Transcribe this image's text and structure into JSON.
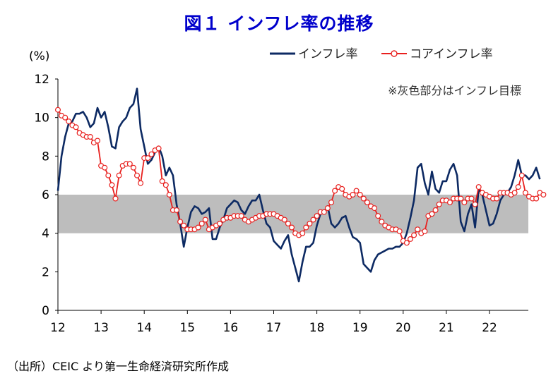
{
  "chart_data": {
    "type": "line",
    "title": "図１ インフレ率の推移",
    "ylabel": "(%)",
    "source": "（出所）CEIC より第一生命経済研究所作成",
    "note": "※灰色部分はインフレ目標",
    "ylim": [
      0,
      12
    ],
    "yticks": [
      "0",
      "2",
      "4",
      "6",
      "8",
      "10",
      "12"
    ],
    "xticks": [
      "12",
      "13",
      "14",
      "15",
      "16",
      "17",
      "18",
      "19",
      "20",
      "21",
      "22"
    ],
    "x_start": 2012.0,
    "x_step": 0.083333,
    "target_band": [
      4,
      6
    ],
    "colors": {
      "headline": "#0d2a63",
      "core": "#e8201e",
      "band": "#bdbdbd"
    },
    "series": [
      {
        "name": "インフレ率",
        "values": [
          6.2,
          8.0,
          9.0,
          9.7,
          9.8,
          10.2,
          10.2,
          10.3,
          10.0,
          9.5,
          9.7,
          10.5,
          10.0,
          10.3,
          9.5,
          8.5,
          8.4,
          9.5,
          9.8,
          10.0,
          10.5,
          10.7,
          11.5,
          9.4,
          8.5,
          7.6,
          7.8,
          8.2,
          8.5,
          8.0,
          7.0,
          7.4,
          7.0,
          5.5,
          4.5,
          3.3,
          4.3,
          5.1,
          5.4,
          5.3,
          5.0,
          5.1,
          5.3,
          3.7,
          3.7,
          4.3,
          4.7,
          5.3,
          5.5,
          5.7,
          5.6,
          5.2,
          5.0,
          5.4,
          5.7,
          5.7,
          6.0,
          5.2,
          4.5,
          4.3,
          3.6,
          3.4,
          3.2,
          3.6,
          3.9,
          2.9,
          2.2,
          1.5,
          2.5,
          3.3,
          3.3,
          3.5,
          4.4,
          5.0,
          5.1,
          5.4,
          4.5,
          4.3,
          4.5,
          4.8,
          4.9,
          4.3,
          3.8,
          3.7,
          3.5,
          2.4,
          2.2,
          2.0,
          2.6,
          2.9,
          3.0,
          3.1,
          3.2,
          3.2,
          3.3,
          3.3,
          3.5,
          4.0,
          4.8,
          5.7,
          7.4,
          7.6,
          6.6,
          6.0,
          7.2,
          6.3,
          6.1,
          6.7,
          6.7,
          7.3,
          7.6,
          7.0,
          4.6,
          4.1,
          5.0,
          5.5,
          4.3,
          6.3,
          6.0,
          5.2,
          4.4,
          4.5,
          5.0,
          5.7,
          6.0,
          6.1,
          6.4,
          7.0,
          7.8,
          7.0,
          7.0,
          6.8,
          7.0,
          7.4,
          6.8
        ]
      },
      {
        "name": "コアインフレ率",
        "values": [
          10.4,
          10.1,
          10.0,
          9.8,
          9.6,
          9.5,
          9.2,
          9.1,
          9.0,
          9.0,
          8.7,
          8.8,
          7.5,
          7.4,
          7.0,
          6.5,
          5.8,
          7.0,
          7.5,
          7.6,
          7.6,
          7.4,
          7.0,
          6.6,
          7.9,
          7.9,
          8.1,
          8.3,
          8.4,
          6.7,
          6.5,
          6.0,
          5.2,
          5.2,
          4.6,
          4.4,
          4.2,
          4.2,
          4.2,
          4.3,
          4.5,
          4.7,
          4.2,
          4.3,
          4.4,
          4.5,
          4.7,
          4.8,
          4.8,
          4.9,
          4.9,
          4.9,
          4.7,
          4.6,
          4.7,
          4.8,
          4.9,
          4.9,
          5.0,
          5.0,
          5.0,
          4.9,
          4.8,
          4.7,
          4.5,
          4.3,
          4.0,
          3.9,
          4.0,
          4.3,
          4.5,
          4.7,
          4.9,
          5.1,
          5.1,
          5.3,
          5.6,
          6.2,
          6.4,
          6.3,
          6.0,
          5.9,
          6.0,
          6.2,
          6.0,
          5.8,
          5.6,
          5.4,
          5.3,
          4.9,
          4.6,
          4.4,
          4.3,
          4.2,
          4.2,
          4.1,
          3.6,
          3.5,
          3.7,
          3.9,
          4.2,
          4.0,
          4.1,
          4.9,
          5.0,
          5.2,
          5.5,
          5.7,
          5.7,
          5.6,
          5.8,
          5.8,
          5.8,
          5.6,
          5.8,
          5.8,
          5.5,
          6.4,
          6.1,
          6.0,
          5.9,
          5.8,
          5.8,
          6.1,
          6.1,
          6.1,
          6.0,
          6.1,
          6.4,
          7.0,
          6.1,
          5.9,
          5.8,
          5.8,
          6.1,
          6.0
        ]
      }
    ]
  }
}
